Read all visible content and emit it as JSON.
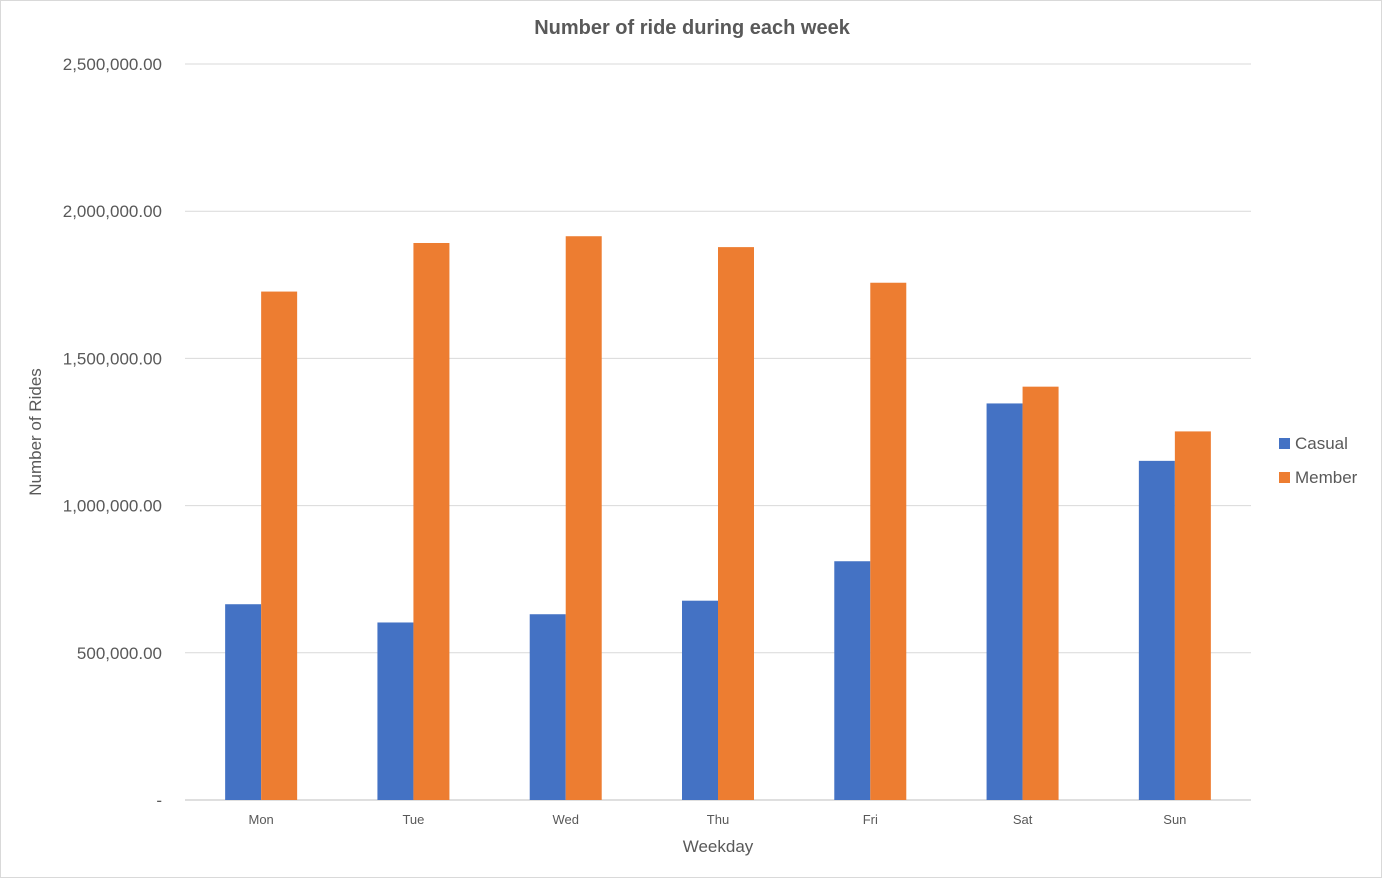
{
  "chart_data": {
    "type": "bar",
    "title": "Number of ride during each week",
    "xlabel": "Weekday",
    "ylabel": "Number of Rides",
    "categories": [
      "Mon",
      "Tue",
      "Wed",
      "Thu",
      "Fri",
      "Sat",
      "Sun"
    ],
    "series": [
      {
        "name": "Casual",
        "color": "#4472C4",
        "values": [
          665000,
          603000,
          631000,
          677000,
          811000,
          1347000,
          1152000
        ]
      },
      {
        "name": "Member",
        "color": "#ED7D31",
        "values": [
          1727000,
          1892000,
          1915000,
          1878000,
          1757000,
          1404000,
          1252000
        ]
      }
    ],
    "ylim": [
      0,
      2500000
    ],
    "yticks": [
      0,
      500000,
      1000000,
      1500000,
      2000000,
      2500000
    ],
    "ytick_labels": [
      "-",
      "500,000.00",
      "1,000,000.00",
      "1,500,000.00",
      "2,000,000.00",
      "2,500,000.00"
    ],
    "grid": true,
    "legend_position": "right"
  }
}
